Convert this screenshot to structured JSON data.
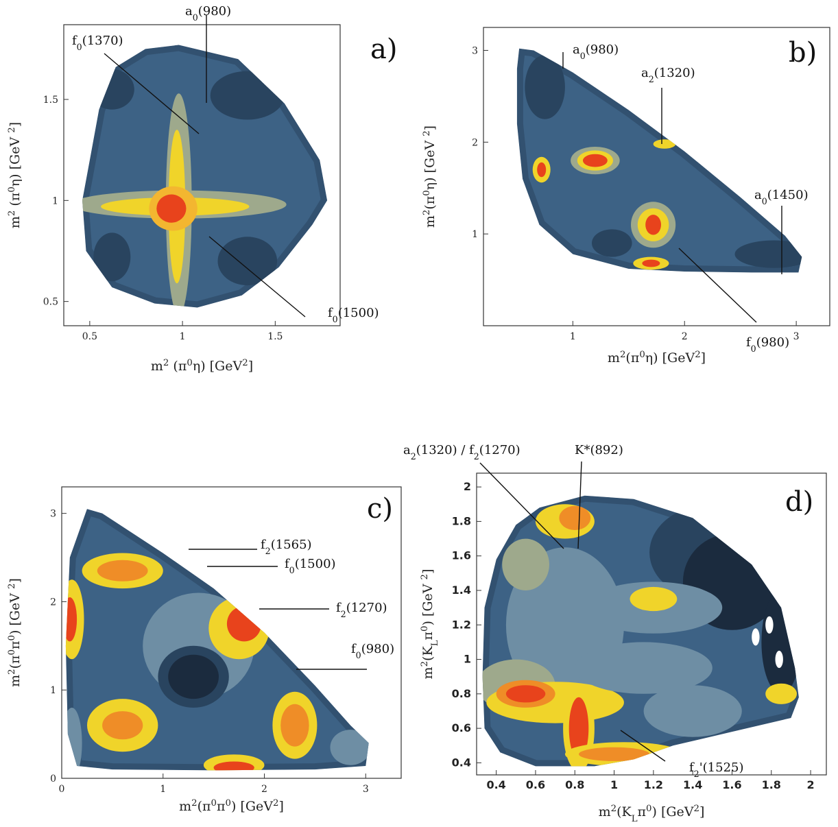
{
  "colors": {
    "c0": "#1b2b3e",
    "c1": "#29445f",
    "c2": "#3d6285",
    "c3": "#6e8ea4",
    "c4": "#9ea98c",
    "c5": "#f0d42a",
    "c6": "#f3b630",
    "c7": "#ef8d27",
    "c8": "#e8431c"
  },
  "chart_data": [
    {
      "type": "heatmap",
      "panel_label": "a)",
      "xlabel": "m² (π⁰η) [GeV²]",
      "ylabel": "m² (π⁰η) [GeV ²]",
      "x_ticks": [
        "0.5",
        "1",
        "1.5"
      ],
      "x_tick_values": [
        0.5,
        1,
        1.5
      ],
      "y_ticks": [
        "0.5",
        "1",
        "1.5"
      ],
      "y_tick_values": [
        0.5,
        1,
        1.5
      ],
      "xlim": [
        0.36,
        1.85
      ],
      "ylim": [
        0.38,
        1.87
      ],
      "annotations": [
        {
          "label": "a₀(980)",
          "x": 0.97,
          "y": 1.45
        },
        {
          "label": "f₀(1370)",
          "x": 0.93,
          "y": 1.3
        },
        {
          "label": "f₀(1500)",
          "x": 0.97,
          "y": 0.82
        }
      ],
      "boundary": [
        [
          0.98,
          1.77
        ],
        [
          0.8,
          1.75
        ],
        [
          0.64,
          1.66
        ],
        [
          0.55,
          1.45
        ],
        [
          0.5,
          1.2
        ],
        [
          0.46,
          1.0
        ],
        [
          0.48,
          0.75
        ],
        [
          0.62,
          0.57
        ],
        [
          0.85,
          0.49
        ],
        [
          1.08,
          0.47
        ],
        [
          1.32,
          0.53
        ],
        [
          1.52,
          0.67
        ],
        [
          1.7,
          0.88
        ],
        [
          1.78,
          1.0
        ],
        [
          1.74,
          1.2
        ],
        [
          1.55,
          1.48
        ],
        [
          1.3,
          1.7
        ]
      ],
      "background_level": 2,
      "blobs": [
        {
          "x": 0.98,
          "y": 0.98,
          "rx": 0.58,
          "ry": 0.07,
          "level": 4
        },
        {
          "x": 0.98,
          "y": 0.98,
          "rx": 0.07,
          "ry": 0.55,
          "level": 4
        },
        {
          "x": 0.96,
          "y": 0.97,
          "rx": 0.4,
          "ry": 0.045,
          "level": 5
        },
        {
          "x": 0.97,
          "y": 0.97,
          "rx": 0.045,
          "ry": 0.38,
          "level": 5
        },
        {
          "x": 0.95,
          "y": 0.96,
          "rx": 0.13,
          "ry": 0.11,
          "level": 6
        },
        {
          "x": 0.94,
          "y": 0.96,
          "rx": 0.08,
          "ry": 0.07,
          "level": 8
        },
        {
          "x": 0.62,
          "y": 1.55,
          "rx": 0.12,
          "ry": 0.1,
          "level": 1
        },
        {
          "x": 1.35,
          "y": 1.52,
          "rx": 0.2,
          "ry": 0.12,
          "level": 1
        },
        {
          "x": 0.62,
          "y": 0.72,
          "rx": 0.1,
          "ry": 0.12,
          "level": 1
        },
        {
          "x": 1.35,
          "y": 0.7,
          "rx": 0.16,
          "ry": 0.12,
          "level": 1
        }
      ]
    },
    {
      "type": "heatmap",
      "panel_label": "b)",
      "xlabel": "m²(π⁰η) [GeV²]",
      "ylabel": "m²(π⁰η) [GeV ²]",
      "x_ticks": [
        "1",
        "2",
        "3"
      ],
      "x_tick_values": [
        1,
        2,
        3
      ],
      "y_ticks": [
        "1",
        "2",
        "3"
      ],
      "y_tick_values": [
        1,
        2,
        3
      ],
      "xlim": [
        0.2,
        3.3
      ],
      "ylim": [
        0.0,
        3.25
      ],
      "annotations": [
        {
          "label": "a₀(980)",
          "x": 0.98,
          "y": 2.72
        },
        {
          "label": "a₂(1320)",
          "x": 1.75,
          "y": 2.0
        },
        {
          "label": "a₀(1450)",
          "x": 2.86,
          "y": 0.98
        },
        {
          "label": "f₀(980)",
          "x": 1.9,
          "y": 1.05
        }
      ],
      "boundary": [
        [
          0.52,
          3.02
        ],
        [
          0.65,
          3.0
        ],
        [
          1.0,
          2.76
        ],
        [
          1.5,
          2.35
        ],
        [
          2.0,
          1.9
        ],
        [
          2.5,
          1.4
        ],
        [
          2.9,
          0.98
        ],
        [
          3.05,
          0.75
        ],
        [
          3.02,
          0.58
        ],
        [
          2.6,
          0.58
        ],
        [
          2.0,
          0.59
        ],
        [
          1.5,
          0.62
        ],
        [
          1.0,
          0.78
        ],
        [
          0.7,
          1.1
        ],
        [
          0.55,
          1.6
        ],
        [
          0.5,
          2.2
        ],
        [
          0.5,
          2.8
        ]
      ],
      "background_level": 2,
      "blobs": [
        {
          "x": 0.75,
          "y": 2.6,
          "rx": 0.18,
          "ry": 0.35,
          "level": 1
        },
        {
          "x": 2.8,
          "y": 0.78,
          "rx": 0.35,
          "ry": 0.15,
          "level": 1
        },
        {
          "x": 1.35,
          "y": 0.9,
          "rx": 0.18,
          "ry": 0.15,
          "level": 1
        },
        {
          "x": 1.2,
          "y": 1.8,
          "rx": 0.22,
          "ry": 0.15,
          "level": 4
        },
        {
          "x": 1.2,
          "y": 1.8,
          "rx": 0.16,
          "ry": 0.11,
          "level": 5
        },
        {
          "x": 1.2,
          "y": 1.8,
          "rx": 0.11,
          "ry": 0.07,
          "level": 8
        },
        {
          "x": 0.72,
          "y": 1.7,
          "rx": 0.08,
          "ry": 0.14,
          "level": 5
        },
        {
          "x": 0.72,
          "y": 1.7,
          "rx": 0.04,
          "ry": 0.08,
          "level": 8
        },
        {
          "x": 1.72,
          "y": 1.1,
          "rx": 0.2,
          "ry": 0.25,
          "level": 4
        },
        {
          "x": 1.72,
          "y": 1.1,
          "rx": 0.14,
          "ry": 0.18,
          "level": 5
        },
        {
          "x": 1.72,
          "y": 1.1,
          "rx": 0.07,
          "ry": 0.11,
          "level": 8
        },
        {
          "x": 1.7,
          "y": 0.68,
          "rx": 0.16,
          "ry": 0.07,
          "level": 5
        },
        {
          "x": 1.7,
          "y": 0.68,
          "rx": 0.08,
          "ry": 0.04,
          "level": 8
        },
        {
          "x": 1.82,
          "y": 1.98,
          "rx": 0.1,
          "ry": 0.05,
          "level": 5
        }
      ]
    },
    {
      "type": "heatmap",
      "panel_label": "c)",
      "xlabel": "m²(π⁰π⁰) [GeV²]",
      "ylabel": "m²(π⁰π⁰) [GeV ²]",
      "x_ticks": [
        "0",
        "1",
        "2",
        "3"
      ],
      "x_tick_values": [
        0,
        1,
        2,
        3
      ],
      "y_ticks": [
        "0",
        "1",
        "2",
        "3"
      ],
      "y_tick_values": [
        0,
        1,
        2,
        3
      ],
      "xlim": [
        0.0,
        3.35
      ],
      "ylim": [
        0.0,
        3.3
      ],
      "annotations": [
        {
          "label": "f₂(1565)",
          "x": 1.15,
          "y": 2.45
        },
        {
          "label": "f₀(1500)",
          "x": 1.35,
          "y": 2.25
        },
        {
          "label": "f₂(1270)",
          "x": 1.7,
          "y": 1.8
        },
        {
          "label": "f₀(980)",
          "x": 2.1,
          "y": 0.95
        }
      ],
      "boundary": [
        [
          0.25,
          3.05
        ],
        [
          0.4,
          3.0
        ],
        [
          1.0,
          2.55
        ],
        [
          1.5,
          2.15
        ],
        [
          2.0,
          1.65
        ],
        [
          2.5,
          1.05
        ],
        [
          2.85,
          0.6
        ],
        [
          3.03,
          0.4
        ],
        [
          3.0,
          0.14
        ],
        [
          2.5,
          0.1
        ],
        [
          1.5,
          0.09
        ],
        [
          0.5,
          0.1
        ],
        [
          0.15,
          0.14
        ],
        [
          0.06,
          0.5
        ],
        [
          0.04,
          1.5
        ],
        [
          0.08,
          2.5
        ]
      ],
      "background_level": 2,
      "blobs": [
        {
          "x": 1.35,
          "y": 1.5,
          "rx": 0.55,
          "ry": 0.6,
          "level": 3
        },
        {
          "x": 1.3,
          "y": 1.15,
          "rx": 0.35,
          "ry": 0.35,
          "level": 1
        },
        {
          "x": 1.3,
          "y": 1.15,
          "rx": 0.25,
          "ry": 0.25,
          "level": 0
        },
        {
          "x": 0.6,
          "y": 2.35,
          "rx": 0.4,
          "ry": 0.2,
          "level": 5
        },
        {
          "x": 0.6,
          "y": 2.35,
          "rx": 0.25,
          "ry": 0.12,
          "level": 7
        },
        {
          "x": 0.1,
          "y": 1.8,
          "rx": 0.12,
          "ry": 0.45,
          "level": 5
        },
        {
          "x": 0.08,
          "y": 1.8,
          "rx": 0.07,
          "ry": 0.25,
          "level": 8
        },
        {
          "x": 1.75,
          "y": 1.7,
          "rx": 0.3,
          "ry": 0.35,
          "level": 5
        },
        {
          "x": 1.8,
          "y": 1.75,
          "rx": 0.17,
          "ry": 0.2,
          "level": 8
        },
        {
          "x": 0.6,
          "y": 0.6,
          "rx": 0.35,
          "ry": 0.3,
          "level": 5
        },
        {
          "x": 0.6,
          "y": 0.6,
          "rx": 0.2,
          "ry": 0.16,
          "level": 7
        },
        {
          "x": 2.3,
          "y": 0.6,
          "rx": 0.22,
          "ry": 0.38,
          "level": 5
        },
        {
          "x": 2.3,
          "y": 0.6,
          "rx": 0.14,
          "ry": 0.24,
          "level": 7
        },
        {
          "x": 1.7,
          "y": 0.15,
          "rx": 0.3,
          "ry": 0.12,
          "level": 5
        },
        {
          "x": 1.7,
          "y": 0.12,
          "rx": 0.2,
          "ry": 0.07,
          "level": 8
        },
        {
          "x": 0.1,
          "y": 0.4,
          "rx": 0.1,
          "ry": 0.4,
          "level": 3
        },
        {
          "x": 2.85,
          "y": 0.35,
          "rx": 0.2,
          "ry": 0.2,
          "level": 3
        }
      ]
    },
    {
      "type": "heatmap",
      "panel_label": "d)",
      "xlabel": "m²(K_Lπ⁰) [GeV²]",
      "ylabel": "m²(K_Lπ⁰) [GeV ²]",
      "x_ticks": [
        "0.4",
        "0.6",
        "0.8",
        "1",
        "1.2",
        "1.4",
        "1.6",
        "1.8",
        "2"
      ],
      "x_tick_values": [
        0.4,
        0.6,
        0.8,
        1,
        1.2,
        1.4,
        1.6,
        1.8,
        2
      ],
      "y_ticks": [
        "0.4",
        "0.6",
        "0.8",
        "1",
        "1.2",
        "1.4",
        "1.6",
        "1.8",
        "2"
      ],
      "y_tick_values": [
        0.4,
        0.6,
        0.8,
        1,
        1.2,
        1.4,
        1.6,
        1.8,
        2
      ],
      "xlim": [
        0.3,
        2.08
      ],
      "ylim": [
        0.33,
        2.08
      ],
      "annotations": [
        {
          "label": "a₂(1320) / f₂(1270)",
          "x": 0.77,
          "y": 1.72
        },
        {
          "label": "K*(892)",
          "x": 0.8,
          "y": 1.75
        },
        {
          "label": "f₂'(1525)",
          "x": 1.0,
          "y": 0.58
        }
      ],
      "boundary": [
        [
          0.62,
          1.88
        ],
        [
          0.85,
          1.95
        ],
        [
          1.1,
          1.93
        ],
        [
          1.4,
          1.82
        ],
        [
          1.7,
          1.55
        ],
        [
          1.85,
          1.3
        ],
        [
          1.92,
          0.95
        ],
        [
          1.94,
          0.78
        ],
        [
          1.9,
          0.66
        ],
        [
          1.6,
          0.58
        ],
        [
          1.3,
          0.5
        ],
        [
          1.1,
          0.42
        ],
        [
          0.9,
          0.38
        ],
        [
          0.6,
          0.38
        ],
        [
          0.42,
          0.46
        ],
        [
          0.34,
          0.6
        ],
        [
          0.33,
          0.9
        ],
        [
          0.34,
          1.3
        ],
        [
          0.4,
          1.58
        ],
        [
          0.5,
          1.78
        ]
      ],
      "background_level": 2,
      "blobs": [
        {
          "x": 1.5,
          "y": 1.62,
          "rx": 0.32,
          "ry": 0.28,
          "level": 1
        },
        {
          "x": 1.6,
          "y": 1.45,
          "rx": 0.25,
          "ry": 0.28,
          "level": 0
        },
        {
          "x": 1.85,
          "y": 1.1,
          "rx": 0.1,
          "ry": 0.3,
          "level": 0
        },
        {
          "x": 1.2,
          "y": 1.3,
          "rx": 0.35,
          "ry": 0.15,
          "level": 3
        },
        {
          "x": 1.2,
          "y": 1.35,
          "rx": 0.12,
          "ry": 0.07,
          "level": 5
        },
        {
          "x": 0.75,
          "y": 1.2,
          "rx": 0.3,
          "ry": 0.45,
          "level": 3
        },
        {
          "x": 0.55,
          "y": 1.55,
          "rx": 0.12,
          "ry": 0.15,
          "level": 4
        },
        {
          "x": 0.75,
          "y": 1.8,
          "rx": 0.15,
          "ry": 0.1,
          "level": 5
        },
        {
          "x": 0.8,
          "y": 1.82,
          "rx": 0.08,
          "ry": 0.07,
          "level": 7
        },
        {
          "x": 0.5,
          "y": 0.85,
          "rx": 0.2,
          "ry": 0.15,
          "level": 4
        },
        {
          "x": 0.7,
          "y": 0.75,
          "rx": 0.35,
          "ry": 0.12,
          "level": 5
        },
        {
          "x": 0.55,
          "y": 0.8,
          "rx": 0.15,
          "ry": 0.08,
          "level": 7
        },
        {
          "x": 0.55,
          "y": 0.8,
          "rx": 0.1,
          "ry": 0.05,
          "level": 8
        },
        {
          "x": 0.82,
          "y": 0.6,
          "rx": 0.08,
          "ry": 0.25,
          "level": 5
        },
        {
          "x": 0.82,
          "y": 0.6,
          "rx": 0.05,
          "ry": 0.18,
          "level": 8
        },
        {
          "x": 1.05,
          "y": 0.45,
          "rx": 0.3,
          "ry": 0.07,
          "level": 5
        },
        {
          "x": 1.0,
          "y": 0.45,
          "rx": 0.18,
          "ry": 0.04,
          "level": 7
        },
        {
          "x": 1.15,
          "y": 0.95,
          "rx": 0.35,
          "ry": 0.15,
          "level": 3
        },
        {
          "x": 1.4,
          "y": 0.7,
          "rx": 0.25,
          "ry": 0.15,
          "level": 3
        },
        {
          "x": 1.85,
          "y": 0.8,
          "rx": 0.08,
          "ry": 0.06,
          "level": 5
        },
        {
          "x": 1.72,
          "y": 1.13,
          "rx": 0.02,
          "ry": 0.05,
          "level": -1
        },
        {
          "x": 1.79,
          "y": 1.2,
          "rx": 0.02,
          "ry": 0.05,
          "level": -1
        },
        {
          "x": 1.84,
          "y": 1.0,
          "rx": 0.02,
          "ry": 0.05,
          "level": -1
        }
      ]
    }
  ]
}
